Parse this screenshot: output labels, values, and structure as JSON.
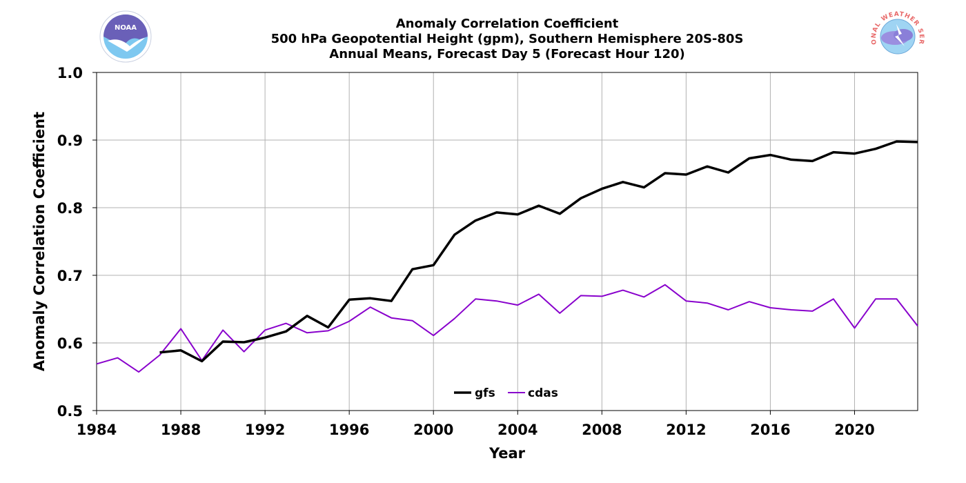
{
  "logos": {
    "left": {
      "icon": "noaa-logo-icon",
      "text": "NOAA"
    },
    "right": {
      "icon": "nws-logo-icon",
      "text": "NATIONAL WEATHER SERVICE"
    }
  },
  "chart_data": {
    "type": "line",
    "title_lines": [
      "Anomaly Correlation Coefficient",
      "500 hPa Geopotential Height (gpm), Southern Hemisphere 20S-80S",
      "Annual Means, Forecast Day 5 (Forecast Hour 120)"
    ],
    "xlabel": "Year",
    "ylabel": "Anomaly Correlation Coefficient",
    "xlim": [
      1984,
      2023
    ],
    "ylim": [
      0.5,
      1.0
    ],
    "xticks": [
      1984,
      1988,
      1992,
      1996,
      2000,
      2004,
      2008,
      2012,
      2016,
      2020
    ],
    "yticks": [
      "0.5",
      "0.6",
      "0.7",
      "0.8",
      "0.9",
      "1.0"
    ],
    "grid": true,
    "legend_position": "bottom-center",
    "series": [
      {
        "name": "gfs",
        "color": "#000000",
        "x": [
          1987,
          1988,
          1989,
          1990,
          1991,
          1992,
          1993,
          1994,
          1995,
          1996,
          1997,
          1998,
          1999,
          2000,
          2001,
          2002,
          2003,
          2004,
          2005,
          2006,
          2007,
          2008,
          2009,
          2010,
          2011,
          2012,
          2013,
          2014,
          2015,
          2016,
          2017,
          2018,
          2019,
          2020,
          2021,
          2022,
          2023
        ],
        "y": [
          0.586,
          0.589,
          0.573,
          0.602,
          0.601,
          0.608,
          0.617,
          0.64,
          0.623,
          0.664,
          0.666,
          0.662,
          0.709,
          0.715,
          0.76,
          0.781,
          0.793,
          0.79,
          0.803,
          0.791,
          0.814,
          0.828,
          0.838,
          0.83,
          0.851,
          0.849,
          0.861,
          0.852,
          0.873,
          0.878,
          0.871,
          0.869,
          0.882,
          0.88,
          0.887,
          0.898,
          0.897
        ]
      },
      {
        "name": "cdas",
        "color": "#8800cc",
        "x": [
          1984,
          1985,
          1986,
          1987,
          1988,
          1989,
          1990,
          1991,
          1992,
          1993,
          1994,
          1995,
          1996,
          1997,
          1998,
          1999,
          2000,
          2001,
          2002,
          2003,
          2004,
          2005,
          2006,
          2007,
          2008,
          2009,
          2010,
          2011,
          2012,
          2013,
          2014,
          2015,
          2016,
          2017,
          2018,
          2019,
          2020,
          2021,
          2022,
          2023
        ],
        "y": [
          0.569,
          0.578,
          0.557,
          0.582,
          0.621,
          0.574,
          0.619,
          0.587,
          0.619,
          0.629,
          0.615,
          0.618,
          0.632,
          0.653,
          0.637,
          0.633,
          0.611,
          0.636,
          0.665,
          0.662,
          0.656,
          0.672,
          0.644,
          0.67,
          0.669,
          0.678,
          0.668,
          0.686,
          0.662,
          0.659,
          0.649,
          0.661,
          0.652,
          0.649,
          0.647,
          0.665,
          0.622,
          0.665,
          0.665,
          0.625
        ]
      }
    ]
  }
}
